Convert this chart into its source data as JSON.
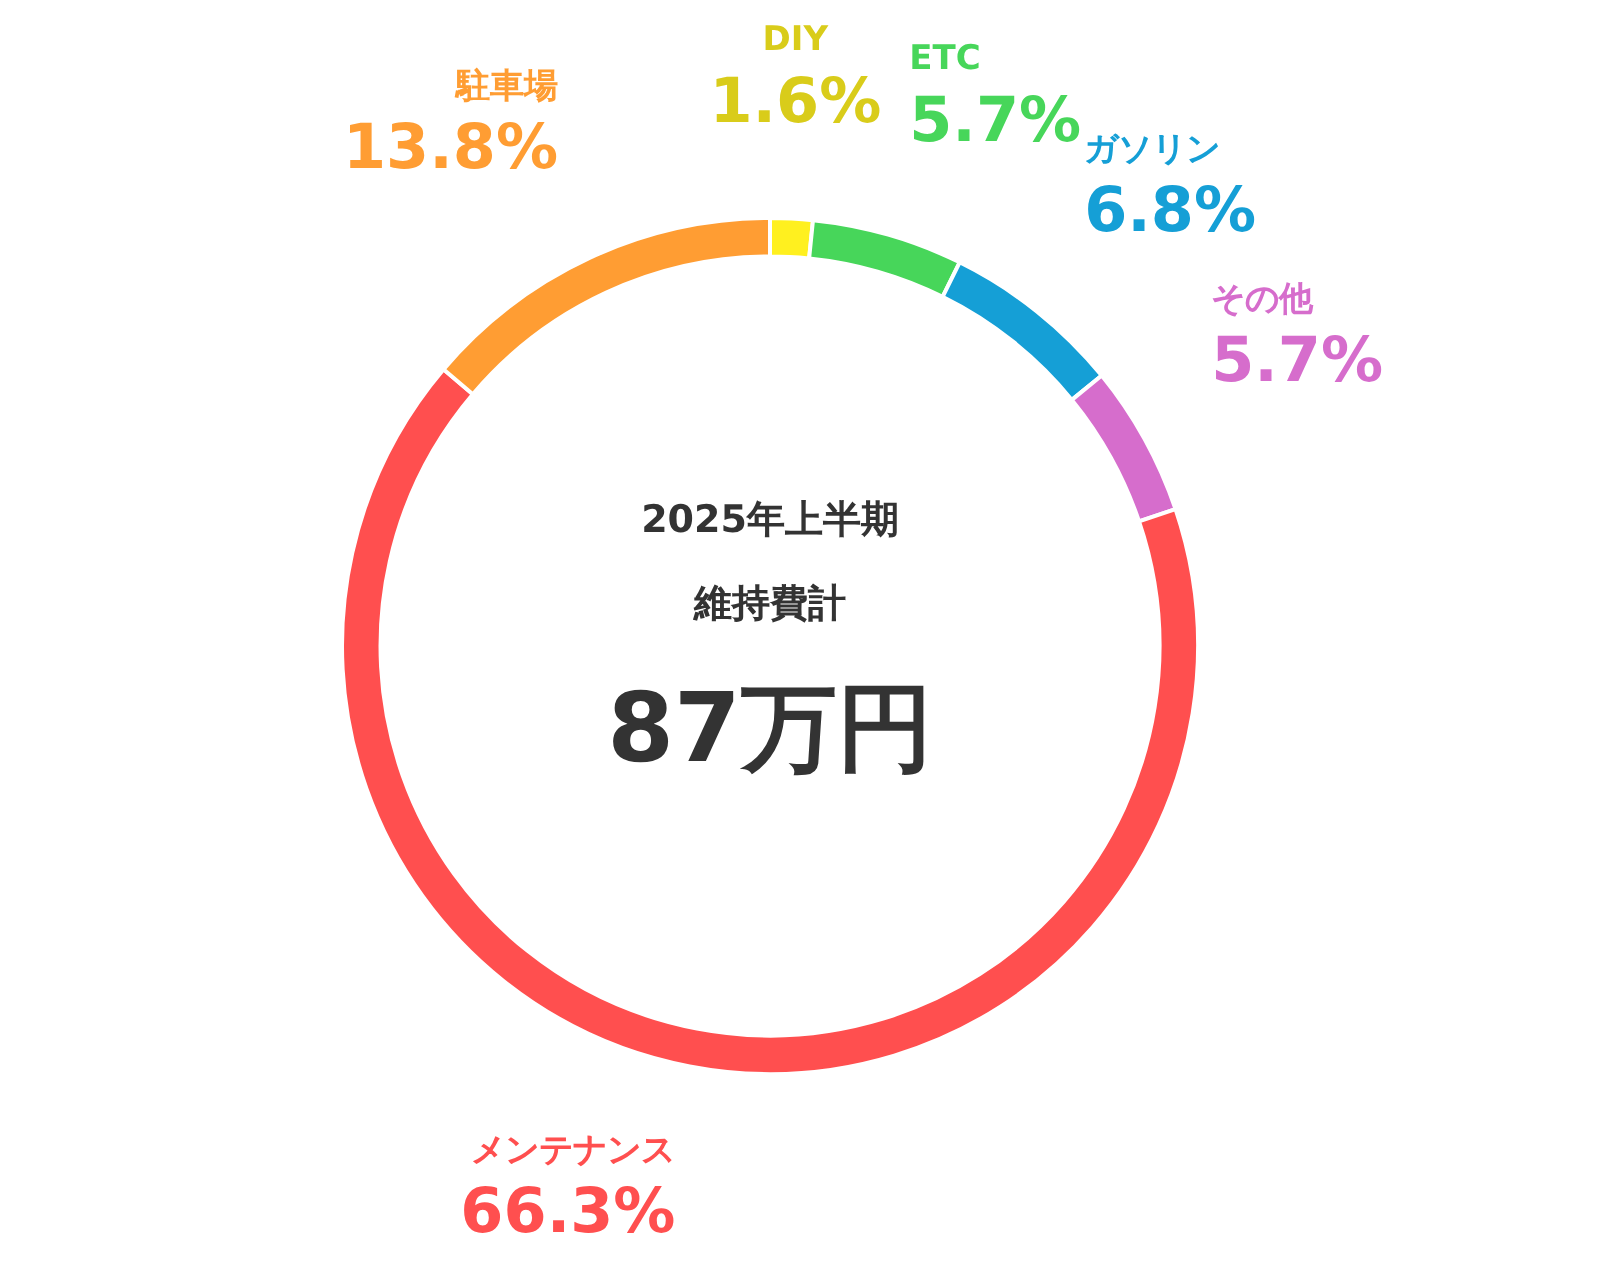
{
  "chart_data": {
    "type": "donut",
    "categories": [
      "DIY",
      "ETC",
      "ガソリン",
      "その他",
      "メンテナンス",
      "駐車場"
    ],
    "values": [
      1.6,
      5.7,
      6.8,
      5.7,
      66.3,
      13.8
    ],
    "value_labels": [
      "1.6%",
      "5.7%",
      "6.8%",
      "5.7%",
      "66.3%",
      "13.8%"
    ],
    "colors": [
      "#fff01f",
      "#47d65a",
      "#159fd6",
      "#d66dcc",
      "#ff4f4f",
      "#ff9d33"
    ],
    "annotations": [
      "2025年上半期",
      "維持費計",
      "87万円"
    ],
    "legend": false
  }
}
